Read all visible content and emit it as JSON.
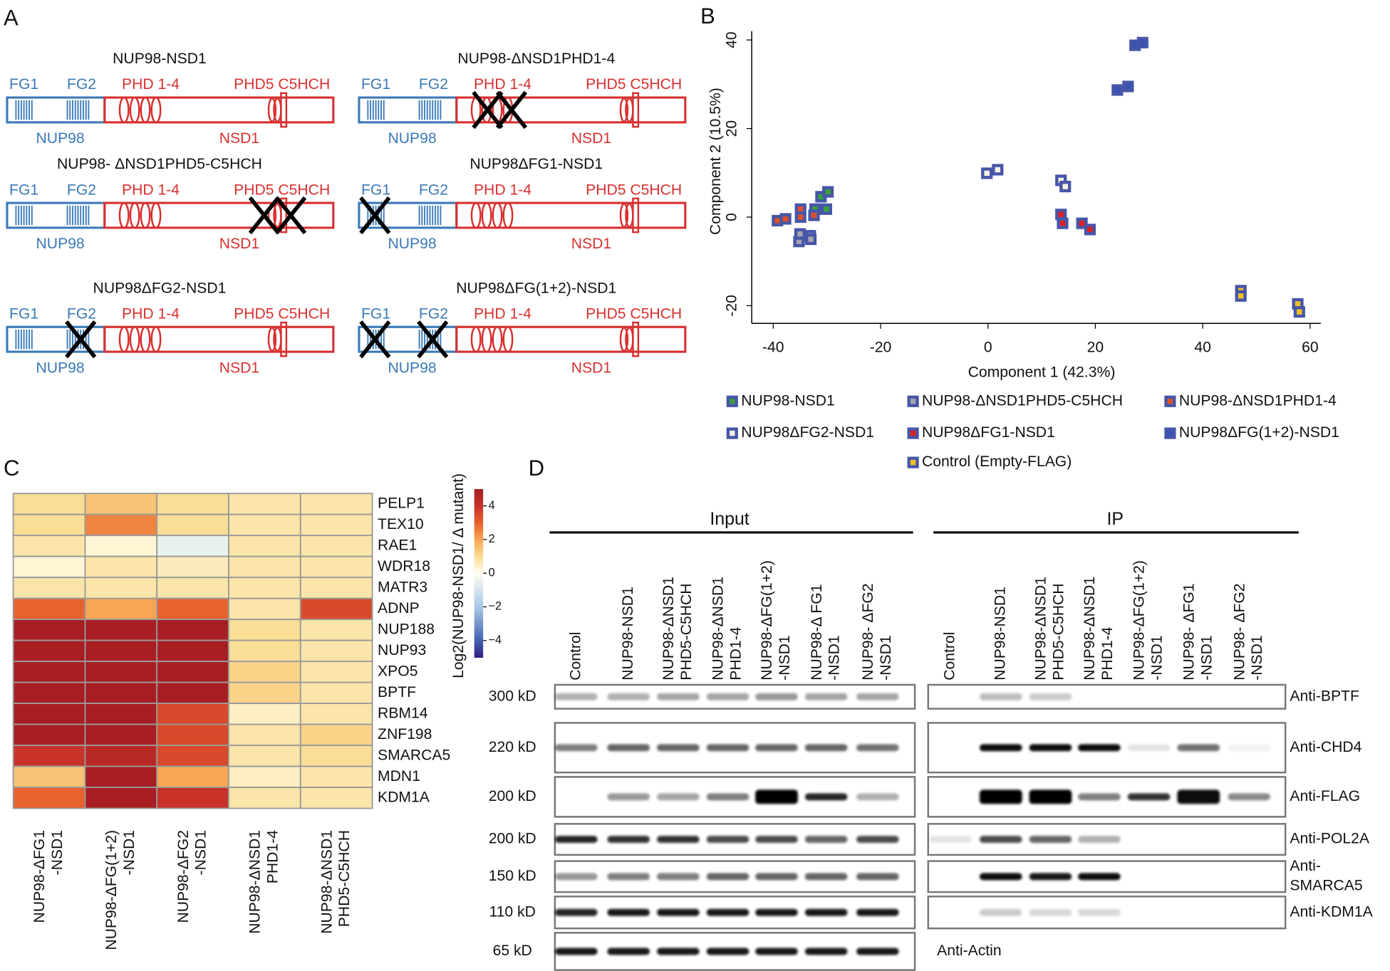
{
  "panel_labels": [
    "A",
    "B",
    "C",
    "D"
  ],
  "panel_a": {
    "labels": {
      "fg1": "FG1",
      "fg2": "FG2",
      "phd14": "PHD 1-4",
      "phd5": "PHD5 C5HCH",
      "nup98": "NUP98",
      "nsd1": "NSD1"
    },
    "constructs": [
      "NUP98-NSD1",
      "NUP98-ΔNSD1PHD1-4",
      "NUP98- ΔNSD1PHD5-C5HCH",
      "NUP98ΔFG1-NSD1",
      "NUP98ΔFG2-NSD1",
      "NUP98ΔFG(1+2)-NSD1"
    ]
  },
  "panel_b": {
    "type": "scatter",
    "x_label": "Component 1 (42.3%)",
    "y_label": "Component 2 (10.5%)",
    "xlim": [
      -44,
      62
    ],
    "ylim": [
      -24,
      42
    ],
    "xticks": [
      -40,
      -20,
      0,
      20,
      40,
      60
    ],
    "yticks": [
      -20,
      0,
      20,
      40
    ],
    "series": [
      {
        "name": "NUP98-NSD1",
        "color": "#3aa03a",
        "x": [
          -32.2,
          -30.1,
          -31.1,
          -29.8
        ],
        "y": [
          1.8,
          1.8,
          4.6,
          5.7
        ]
      },
      {
        "name": "NUP98-ΔNSD1PHD5-C5HCH",
        "color": "#a4a4ac",
        "x": [
          -35.2,
          -33.1,
          -33.0,
          -35.0
        ],
        "y": [
          -5.5,
          -4.2,
          -5.0,
          -3.8
        ]
      },
      {
        "name": "NUP98-ΔNSD1PHD1-4",
        "color": "#e0502a",
        "x": [
          -39.2,
          -37.7,
          -34.9,
          -34.9,
          -32.4
        ],
        "y": [
          -0.8,
          -0.4,
          1.8,
          0,
          0.4
        ]
      },
      {
        "name": "NUP98ΔFG2-NSD1",
        "color": "#f4f2e0",
        "x": [
          -0.2,
          1.8,
          13.6,
          14.4
        ],
        "y": [
          9.9,
          10.7,
          8.3,
          6.9
        ]
      },
      {
        "name": "NUP98ΔFG1-NSD1",
        "color": "#e02020",
        "x": [
          13.6,
          13.9,
          17.5,
          19.0
        ],
        "y": [
          0.6,
          -1.4,
          -1.4,
          -2.8
        ]
      },
      {
        "name": "NUP98ΔFG(1+2)-NSD1",
        "color": "#3a52b0",
        "x": [
          27.4,
          28.8,
          24.1,
          26.1
        ],
        "y": [
          38.8,
          39.4,
          28.7,
          29.5
        ]
      },
      {
        "name": "Control (Empty-FLAG)",
        "color": "#f0c020",
        "x": [
          47.1,
          47.1,
          57.7,
          58.0
        ],
        "y": [
          -16.6,
          -17.8,
          -19.6,
          -21.4
        ]
      }
    ]
  },
  "panel_c": {
    "type": "heatmap",
    "rows": [
      "PELP1",
      "TEX10",
      "RAE1",
      "WDR18",
      "MATR3",
      "ADNP",
      "NUP188",
      "NUP93",
      "XPO5",
      "BPTF",
      "RBM14",
      "ZNF198",
      "SMARCA5",
      "MDN1",
      "KDM1A"
    ],
    "columns": [
      [
        "NUP98-ΔFG1",
        "-NSD1"
      ],
      [
        "NUP98-ΔFG(1+2)",
        "-NSD1"
      ],
      [
        "NUP98-ΔFG2",
        "-NSD1"
      ],
      [
        "NUP98-ΔNSD1",
        "PHD1-4"
      ],
      [
        "NUP98-ΔNSD1",
        "PHD5-C5HCH"
      ]
    ],
    "values": [
      [
        1,
        1.5,
        1,
        0.8,
        0.8
      ],
      [
        1,
        2.5,
        1,
        0.8,
        0.8
      ],
      [
        0.8,
        0.3,
        -0.5,
        0.8,
        0.8
      ],
      [
        0.3,
        0.8,
        0.6,
        0.8,
        0.8
      ],
      [
        0.8,
        0.8,
        0.8,
        0.8,
        0.8
      ],
      [
        3,
        2,
        3,
        0.8,
        3.5
      ],
      [
        5,
        5,
        5,
        1,
        0.8
      ],
      [
        5,
        5,
        5,
        1,
        0.8
      ],
      [
        5,
        5,
        5,
        1.2,
        0.8
      ],
      [
        5,
        5,
        5,
        1.2,
        0.8
      ],
      [
        5,
        5,
        3.5,
        0.5,
        0.8
      ],
      [
        5,
        5,
        3.5,
        0.8,
        1.2
      ],
      [
        4,
        4.5,
        3.5,
        0.8,
        1
      ],
      [
        1.5,
        5,
        2,
        0.5,
        0.8
      ],
      [
        3,
        5,
        4,
        0.8,
        0.8
      ]
    ],
    "colorbar": {
      "title": "Log2(NUP98-NSD1/ Δ mutant)",
      "lim": [
        -5,
        5
      ],
      "ticks": [
        4,
        2,
        0,
        {
          "value": -2,
          "label": "−2"
        },
        {
          "value": -4,
          "label": "−4"
        }
      ]
    }
  },
  "panel_d": {
    "headers": [
      "Input",
      "IP"
    ],
    "input_lanes": [
      [
        "Control"
      ],
      [
        "NUP98-NSD1"
      ],
      [
        "NUP98-ΔNSD1",
        "PHD5-C5HCH"
      ],
      [
        "NUP98-ΔNSD1",
        "PHD1-4"
      ],
      [
        "NUP98-ΔFG(1+2)",
        "-NSD1"
      ],
      [
        "NUP98-Δ FG1",
        "-NSD1"
      ],
      [
        "NUP98- ΔFG2",
        "-NSD1"
      ]
    ],
    "ip_lanes": [
      [
        "Control"
      ],
      [
        "NUP98-NSD1"
      ],
      [
        "NUP98-ΔNSD1",
        "PHD5-C5HCH"
      ],
      [
        "NUP98-ΔNSD1",
        "PHD1-4"
      ],
      [
        "NUP98-ΔFG(1+2)",
        "-NSD1"
      ],
      [
        "NUP98- ΔFG1",
        "-NSD1"
      ],
      [
        "NUP98- ΔFG2",
        "-NSD1"
      ]
    ],
    "blots": [
      {
        "size": "300 kD",
        "antibody": [
          "Anti-BPTF"
        ]
      },
      {
        "size": "220 kD",
        "antibody": [
          "Anti-CHD4"
        ]
      },
      {
        "size": "200 kD",
        "antibody": [
          "Anti-FLAG"
        ]
      },
      {
        "size": "200 kD",
        "antibody": [
          "Anti-POL2A"
        ]
      },
      {
        "size": "150 kD",
        "antibody": [
          "Anti-",
          "SMARCA5"
        ]
      },
      {
        "size": "110 kD",
        "antibody": [
          "Anti-KDM1A"
        ]
      },
      {
        "size": "65 kD",
        "antibody": [
          "Anti-Actin"
        ]
      }
    ]
  }
}
